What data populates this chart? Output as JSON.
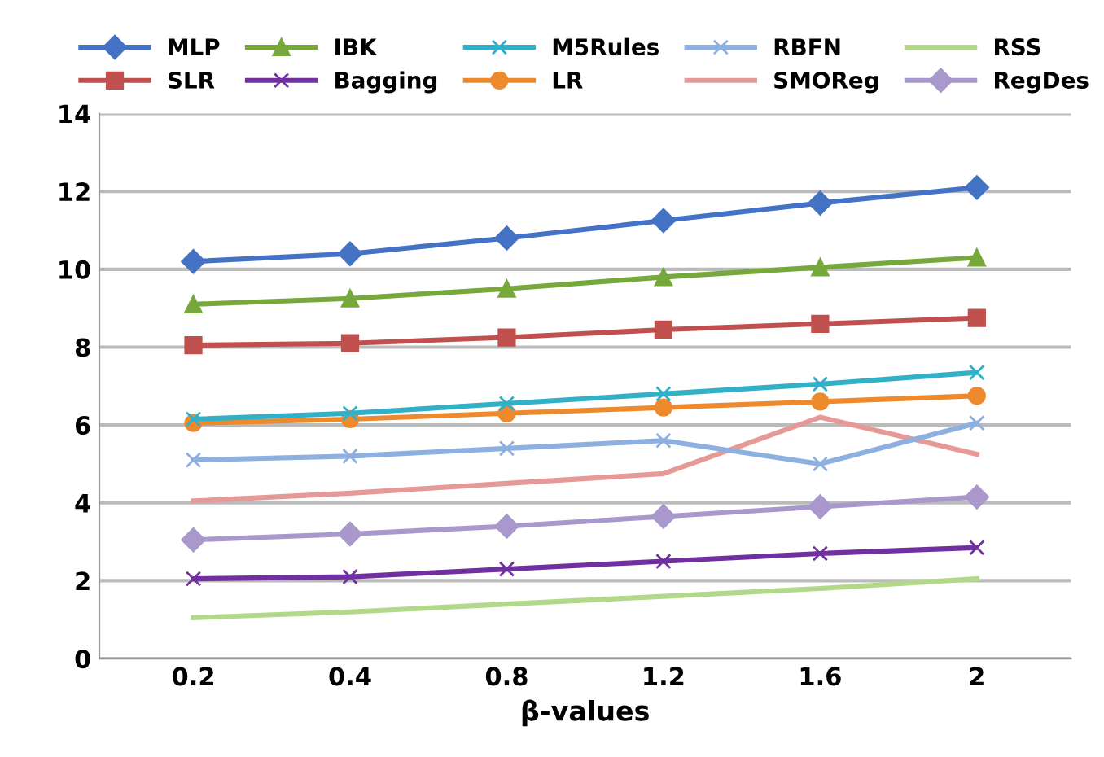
{
  "chart_data": {
    "type": "line",
    "xlabel": "β-values",
    "categories": [
      "0.2",
      "0.4",
      "0.8",
      "1.2",
      "1.6",
      "2"
    ],
    "ylim": [
      0,
      14
    ],
    "yticks": [
      0,
      2,
      4,
      6,
      8,
      10,
      12,
      14
    ],
    "grid": "y",
    "legend": "top",
    "line_style": "solid",
    "series": [
      {
        "name": "MLP",
        "color": "#4472c4",
        "marker": "diamond",
        "values": [
          10.2,
          10.4,
          10.8,
          11.25,
          11.7,
          12.1
        ]
      },
      {
        "name": "SLR",
        "color": "#c0504d",
        "marker": "square",
        "values": [
          8.05,
          8.1,
          8.25,
          8.45,
          8.6,
          8.75
        ]
      },
      {
        "name": "IBK",
        "color": "#77a83c",
        "marker": "triangle",
        "values": [
          9.1,
          9.25,
          9.5,
          9.8,
          10.05,
          10.3
        ]
      },
      {
        "name": "Bagging",
        "color": "#7030a0",
        "marker": "cross",
        "values": [
          2.05,
          2.1,
          2.3,
          2.5,
          2.7,
          2.85
        ]
      },
      {
        "name": "M5Rules",
        "color": "#31b0c8",
        "marker": "cross",
        "values": [
          6.15,
          6.3,
          6.55,
          6.8,
          7.05,
          7.35
        ]
      },
      {
        "name": "LR",
        "color": "#ed8a2e",
        "marker": "circle",
        "values": [
          6.05,
          6.15,
          6.3,
          6.45,
          6.6,
          6.75
        ]
      },
      {
        "name": "RBFN",
        "color": "#8eb0e0",
        "marker": "cross",
        "values": [
          5.1,
          5.2,
          5.4,
          5.6,
          5.0,
          6.05
        ]
      },
      {
        "name": "SMOReg",
        "color": "#e69a98",
        "marker": "none",
        "values": [
          4.05,
          4.25,
          4.5,
          4.75,
          6.2,
          5.25
        ]
      },
      {
        "name": "RSS",
        "color": "#b3d88a",
        "marker": "none",
        "values": [
          1.05,
          1.2,
          1.4,
          1.6,
          1.8,
          2.05
        ]
      },
      {
        "name": "RegDes",
        "color": "#a898cc",
        "marker": "diamond",
        "values": [
          3.05,
          3.2,
          3.4,
          3.65,
          3.9,
          4.15
        ]
      }
    ]
  }
}
